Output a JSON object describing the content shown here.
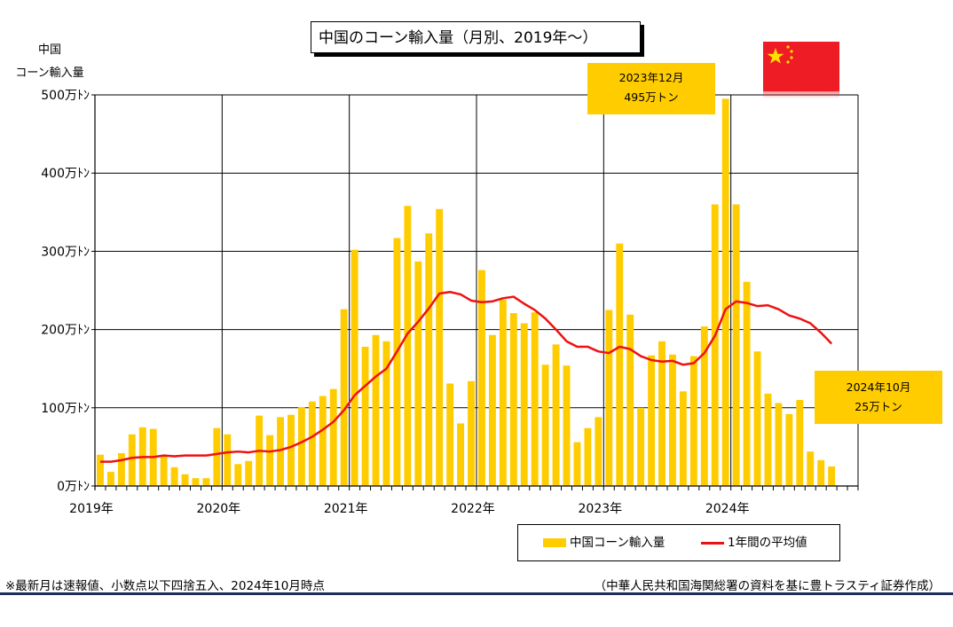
{
  "header": {
    "title": "中国のコーン輸入量（月別、2019年～）",
    "ylabel_line1": "中国",
    "ylabel_line2": "コーン輸入量"
  },
  "callouts": {
    "peak": {
      "line1": "2023年12月",
      "line2": "495万トン"
    },
    "latest": {
      "line1": "2024年10月",
      "line2": "25万トン"
    }
  },
  "legend": {
    "bar_label": "中国コーン輸入量",
    "line_label": "1年間の平均値"
  },
  "footer": {
    "note": "※最新月は速報値、小数点以下四捨五入、2024年10月時点",
    "source": "（中華人民共和国海関総署の資料を基に豊トラスティ証券作成）"
  },
  "colors": {
    "bar": "#ffcc00",
    "line": "#ee1111",
    "flag_red": "#ee1c25",
    "flag_star": "#ffde00"
  },
  "flag_icon": "china-flag-icon",
  "chart_data": {
    "type": "bar",
    "title": "中国のコーン輸入量（月別、2019年～）",
    "ylabel": "中国 コーン輸入量",
    "ylim": [
      0,
      500
    ],
    "y_ticks": [
      0,
      100,
      200,
      300,
      400,
      500
    ],
    "y_tick_labels": [
      "0万ﾄﾝ",
      "100万ﾄﾝ",
      "200万ﾄﾝ",
      "300万ﾄﾝ",
      "400万ﾄﾝ",
      "500万ﾄﾝ"
    ],
    "x_year_labels": [
      "2019年",
      "2020年",
      "2021年",
      "2022年",
      "2023年",
      "2024年"
    ],
    "grid": true,
    "legend_position": "bottom-right",
    "series": [
      {
        "name": "中国コーン輸入量",
        "type": "bar",
        "values": [
          40,
          18,
          42,
          66,
          75,
          73,
          38,
          24,
          15,
          10,
          10,
          74,
          66,
          28,
          32,
          90,
          65,
          88,
          91,
          101,
          108,
          115,
          124,
          226,
          302,
          178,
          193,
          185,
          317,
          358,
          287,
          323,
          354,
          131,
          80,
          134,
          276,
          193,
          238,
          221,
          208,
          222,
          155,
          181,
          154,
          56,
          74,
          88,
          225,
          310,
          219,
          100,
          167,
          185,
          168,
          121,
          166,
          204,
          360,
          495,
          360,
          261,
          172,
          118,
          106,
          92,
          110,
          44,
          33,
          25
        ]
      },
      {
        "name": "1年間の平均値",
        "type": "line",
        "values": [
          31,
          31,
          33,
          36,
          37,
          37,
          39,
          38,
          39,
          39,
          39,
          41,
          43,
          44,
          43,
          45,
          44,
          46,
          50,
          56,
          63,
          72,
          82,
          97,
          116,
          128,
          140,
          150,
          172,
          195,
          210,
          227,
          246,
          248,
          245,
          237,
          235,
          236,
          240,
          242,
          233,
          225,
          214,
          200,
          185,
          178,
          178,
          172,
          170,
          178,
          175,
          166,
          161,
          159,
          160,
          155,
          157,
          170,
          192,
          226,
          236,
          234,
          230,
          231,
          226,
          218,
          214,
          208,
          196,
          182
        ]
      }
    ]
  }
}
